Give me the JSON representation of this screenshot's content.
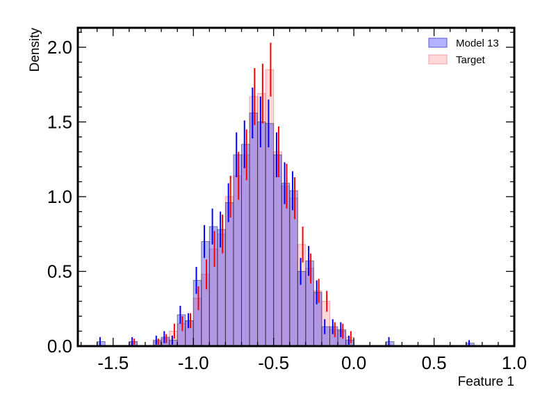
{
  "chart_data": {
    "type": "bar",
    "subtype": "histogram",
    "xlabel": "Feature 1",
    "ylabel": "Density",
    "xlim": [
      -1.72,
      1.0
    ],
    "ylim": [
      0,
      2.13
    ],
    "xticks": [
      -1.5,
      -1.0,
      -0.5,
      0.0,
      0.5,
      1.0
    ],
    "xtick_labels": [
      "-1.5",
      "-1.0",
      "-0.5",
      "0.0",
      "0.5",
      "1.0"
    ],
    "yticks": [
      0.0,
      0.5,
      1.0,
      1.5,
      2.0
    ],
    "ytick_labels": [
      "0.0",
      "0.5",
      "1.0",
      "1.5",
      "2.0"
    ],
    "grid": false,
    "legend_position": "top-right",
    "series": [
      {
        "name": "Model 13",
        "color": "#0000ff",
        "fill_opacity": 0.3,
        "bins": [
          {
            "x0": -1.6,
            "x1": -1.55,
            "y": 0.03,
            "err": 0.03
          },
          {
            "x0": -1.4,
            "x1": -1.35,
            "y": 0.03,
            "err": 0.03
          },
          {
            "x0": -1.25,
            "x1": -1.2,
            "y": 0.04,
            "err": 0.03
          },
          {
            "x0": -1.2,
            "x1": -1.15,
            "y": 0.06,
            "err": 0.04
          },
          {
            "x0": -1.15,
            "x1": -1.1,
            "y": 0.04,
            "err": 0.03
          },
          {
            "x0": -1.1,
            "x1": -1.05,
            "y": 0.21,
            "err": 0.06
          },
          {
            "x0": -1.05,
            "x1": -1.0,
            "y": 0.17,
            "err": 0.05
          },
          {
            "x0": -1.0,
            "x1": -0.95,
            "y": 0.44,
            "err": 0.09
          },
          {
            "x0": -0.95,
            "x1": -0.9,
            "y": 0.7,
            "err": 0.11
          },
          {
            "x0": -0.9,
            "x1": -0.85,
            "y": 0.8,
            "err": 0.12
          },
          {
            "x0": -0.85,
            "x1": -0.8,
            "y": 0.78,
            "err": 0.12
          },
          {
            "x0": -0.8,
            "x1": -0.75,
            "y": 0.96,
            "err": 0.13
          },
          {
            "x0": -0.75,
            "x1": -0.7,
            "y": 1.28,
            "err": 0.15
          },
          {
            "x0": -0.7,
            "x1": -0.65,
            "y": 1.35,
            "err": 0.16
          },
          {
            "x0": -0.65,
            "x1": -0.6,
            "y": 1.56,
            "err": 0.17
          },
          {
            "x0": -0.6,
            "x1": -0.55,
            "y": 1.5,
            "err": 0.17
          },
          {
            "x0": -0.55,
            "x1": -0.5,
            "y": 1.49,
            "err": 0.16
          },
          {
            "x0": -0.5,
            "x1": -0.45,
            "y": 1.28,
            "err": 0.15
          },
          {
            "x0": -0.45,
            "x1": -0.4,
            "y": 1.09,
            "err": 0.14
          },
          {
            "x0": -0.4,
            "x1": -0.35,
            "y": 1.04,
            "err": 0.13
          },
          {
            "x0": -0.35,
            "x1": -0.3,
            "y": 0.5,
            "err": 0.09
          },
          {
            "x0": -0.3,
            "x1": -0.25,
            "y": 0.57,
            "err": 0.1
          },
          {
            "x0": -0.25,
            "x1": -0.2,
            "y": 0.36,
            "err": 0.08
          },
          {
            "x0": -0.2,
            "x1": -0.15,
            "y": 0.13,
            "err": 0.05
          },
          {
            "x0": -0.15,
            "x1": -0.1,
            "y": 0.13,
            "err": 0.05
          },
          {
            "x0": -0.1,
            "x1": -0.05,
            "y": 0.11,
            "err": 0.05
          },
          {
            "x0": -0.05,
            "x1": 0.0,
            "y": 0.04,
            "err": 0.03
          },
          {
            "x0": 0.2,
            "x1": 0.25,
            "y": 0.03,
            "err": 0.03
          },
          {
            "x0": 0.7,
            "x1": 0.75,
            "y": 0.02,
            "err": 0.02
          }
        ]
      },
      {
        "name": "Target",
        "color": "#ff0000",
        "fill_opacity": 0.15,
        "bins": [
          {
            "x0": -1.4,
            "x1": -1.35,
            "y": 0.03,
            "err": 0.02
          },
          {
            "x0": -1.25,
            "x1": -1.2,
            "y": 0.03,
            "err": 0.02
          },
          {
            "x0": -1.2,
            "x1": -1.15,
            "y": 0.05,
            "err": 0.03
          },
          {
            "x0": -1.15,
            "x1": -1.1,
            "y": 0.1,
            "err": 0.05
          },
          {
            "x0": -1.1,
            "x1": -1.05,
            "y": 0.15,
            "err": 0.05
          },
          {
            "x0": -1.05,
            "x1": -1.0,
            "y": 0.17,
            "err": 0.05
          },
          {
            "x0": -1.0,
            "x1": -0.95,
            "y": 0.32,
            "err": 0.08
          },
          {
            "x0": -0.95,
            "x1": -0.9,
            "y": 0.48,
            "err": 0.1
          },
          {
            "x0": -0.9,
            "x1": -0.85,
            "y": 0.65,
            "err": 0.12
          },
          {
            "x0": -0.85,
            "x1": -0.8,
            "y": 0.75,
            "err": 0.13
          },
          {
            "x0": -0.8,
            "x1": -0.75,
            "y": 1.0,
            "err": 0.14
          },
          {
            "x0": -0.75,
            "x1": -0.7,
            "y": 1.14,
            "err": 0.16
          },
          {
            "x0": -0.7,
            "x1": -0.65,
            "y": 1.28,
            "err": 0.17
          },
          {
            "x0": -0.65,
            "x1": -0.6,
            "y": 1.67,
            "err": 0.19
          },
          {
            "x0": -0.6,
            "x1": -0.55,
            "y": 1.69,
            "err": 0.2
          },
          {
            "x0": -0.55,
            "x1": -0.5,
            "y": 1.85,
            "err": 0.18
          },
          {
            "x0": -0.5,
            "x1": -0.45,
            "y": 1.3,
            "err": 0.17
          },
          {
            "x0": -0.45,
            "x1": -0.4,
            "y": 1.07,
            "err": 0.15
          },
          {
            "x0": -0.4,
            "x1": -0.35,
            "y": 0.99,
            "err": 0.14
          },
          {
            "x0": -0.35,
            "x1": -0.3,
            "y": 0.68,
            "err": 0.12
          },
          {
            "x0": -0.3,
            "x1": -0.25,
            "y": 0.52,
            "err": 0.1
          },
          {
            "x0": -0.25,
            "x1": -0.2,
            "y": 0.37,
            "err": 0.08
          },
          {
            "x0": -0.2,
            "x1": -0.15,
            "y": 0.3,
            "err": 0.07
          },
          {
            "x0": -0.15,
            "x1": -0.1,
            "y": 0.11,
            "err": 0.05
          },
          {
            "x0": -0.1,
            "x1": -0.05,
            "y": 0.1,
            "err": 0.05
          },
          {
            "x0": -0.05,
            "x1": 0.0,
            "y": 0.06,
            "err": 0.04
          }
        ]
      }
    ]
  }
}
